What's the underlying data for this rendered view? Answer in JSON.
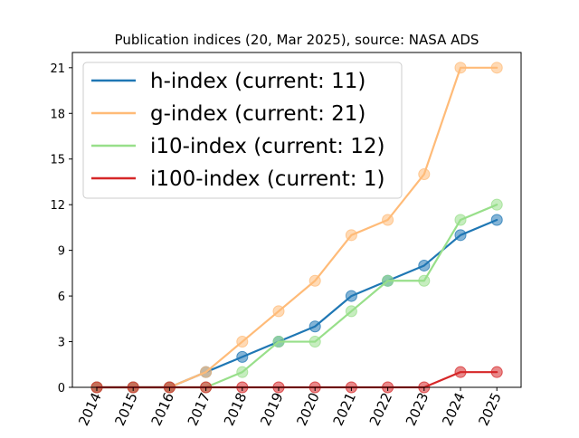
{
  "chart_data": {
    "type": "line",
    "title": "Publication indices (20, Mar 2025), source: NASA ADS",
    "xlabel": "",
    "ylabel": "",
    "categories": [
      "2014",
      "2015",
      "2016",
      "2017",
      "2018",
      "2019",
      "2020",
      "2021",
      "2022",
      "2023",
      "2024",
      "2025"
    ],
    "ylim": [
      0,
      22
    ],
    "yticks": [
      0,
      3,
      6,
      9,
      12,
      15,
      18,
      21
    ],
    "grid": false,
    "legend_position": "top-left",
    "series": [
      {
        "name": "h-index (current: 11)",
        "color": "#1f77b4",
        "values": [
          0,
          0,
          0,
          1,
          2,
          3,
          4,
          6,
          7,
          8,
          10,
          11
        ]
      },
      {
        "name": "g-index (current: 21)",
        "color": "#ffbb78",
        "values": [
          0,
          0,
          0,
          1,
          3,
          5,
          7,
          10,
          11,
          14,
          21,
          21
        ]
      },
      {
        "name": "i10-index (current: 12)",
        "color": "#98df8a",
        "values": [
          0,
          0,
          0,
          0,
          1,
          3,
          3,
          5,
          7,
          7,
          11,
          12
        ]
      },
      {
        "name": "i100-index (current: 1)",
        "color": "#d62728",
        "values": [
          0,
          0,
          0,
          0,
          0,
          0,
          0,
          0,
          0,
          0,
          1,
          1
        ]
      }
    ]
  }
}
